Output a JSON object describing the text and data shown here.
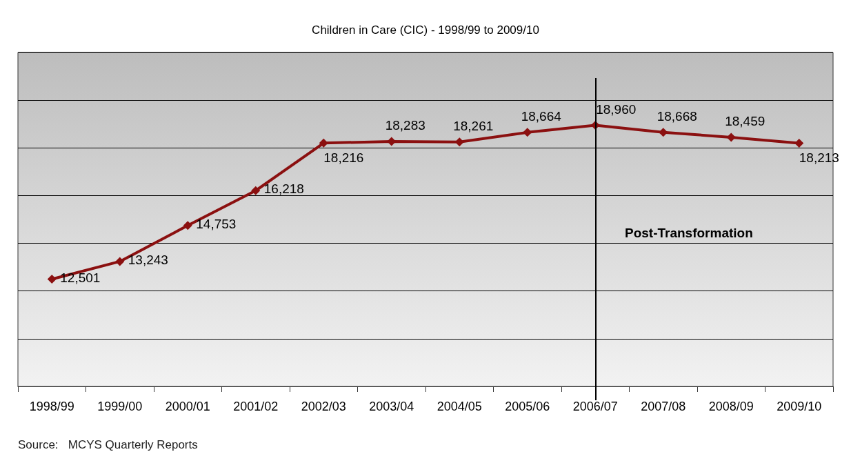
{
  "chart_data": {
    "type": "line",
    "title": "Children in Care (CIC) - 1998/99 to 2009/10",
    "categories": [
      "1998/99",
      "1999/00",
      "2000/01",
      "2001/02",
      "2002/03",
      "2003/04",
      "2004/05",
      "2005/06",
      "2006/07",
      "2007/08",
      "2008/09",
      "2009/10"
    ],
    "series": [
      {
        "color": "#8b1010",
        "values": [
          12501,
          13243,
          14753,
          16218,
          18216,
          18283,
          18261,
          18664,
          18960,
          18668,
          18459,
          18213
        ],
        "value_labels": [
          "12,501",
          "13,243",
          "14,753",
          "16,218",
          "18,216",
          "18,283",
          "18,261",
          "18,664",
          "18,960",
          "18,668",
          "18,459",
          "18,213"
        ]
      }
    ],
    "marker": "diamond",
    "line_style": "solid",
    "grid": "y",
    "tick_labels": "x",
    "ref_lines": [
      {
        "axis": "x",
        "value": "2006/07",
        "color": "#000000",
        "line_style": "solid"
      }
    ],
    "annotations": [
      "Post-Transformation",
      "Source:   MCYS Quarterly Reports"
    ]
  }
}
